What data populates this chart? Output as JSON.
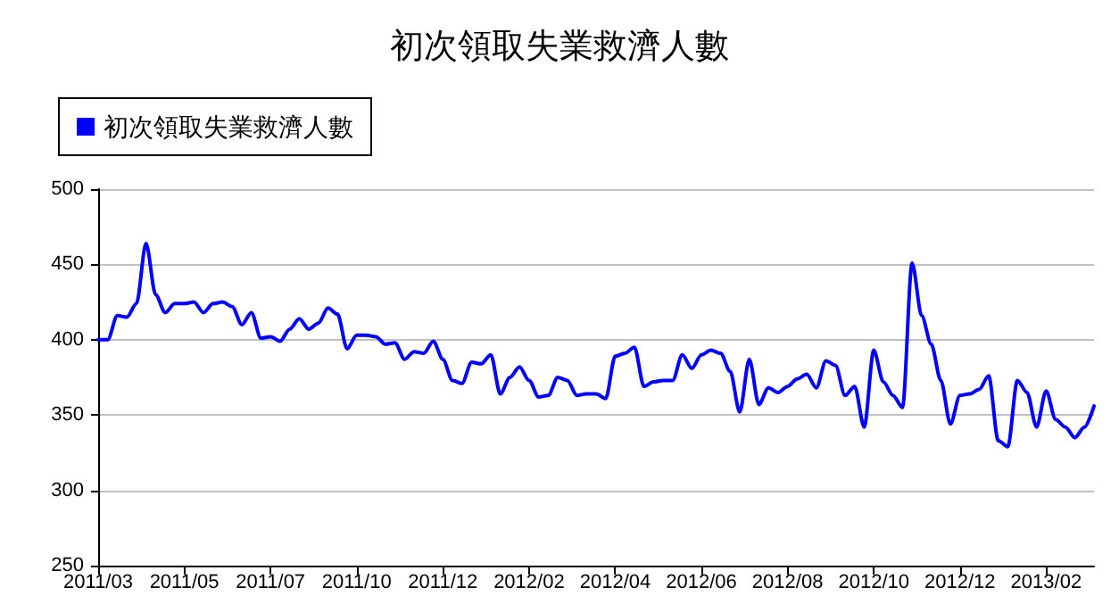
{
  "chart_data": {
    "type": "line",
    "title": "初次領取失業救濟人數",
    "categories": [
      "2011/03",
      null,
      null,
      null,
      null,
      null,
      null,
      null,
      null,
      "2011/05",
      null,
      null,
      null,
      null,
      null,
      null,
      null,
      null,
      "2011/07",
      null,
      null,
      null,
      null,
      null,
      null,
      null,
      null,
      "2011/10",
      null,
      null,
      null,
      null,
      null,
      null,
      null,
      null,
      "2011/12",
      null,
      null,
      null,
      null,
      null,
      null,
      null,
      null,
      "2012/02",
      null,
      null,
      null,
      null,
      null,
      null,
      null,
      null,
      "2012/04",
      null,
      null,
      null,
      null,
      null,
      null,
      null,
      null,
      "2012/06",
      null,
      null,
      null,
      null,
      null,
      null,
      null,
      null,
      "2012/08",
      null,
      null,
      null,
      null,
      null,
      null,
      null,
      null,
      "2012/10",
      null,
      null,
      null,
      null,
      null,
      null,
      null,
      null,
      "2012/12",
      null,
      null,
      null,
      null,
      null,
      null,
      null,
      null,
      "2013/02",
      null,
      null,
      null,
      null,
      null
    ],
    "series": [
      {
        "name": "初次領取失業救濟人數",
        "color": "#0000ff",
        "values": [
          400,
          400,
          416,
          415,
          424,
          464,
          430,
          418,
          424,
          424,
          425,
          418,
          424,
          425,
          422,
          410,
          418,
          401,
          402,
          399,
          407,
          414,
          407,
          411,
          421,
          417,
          394,
          403,
          403,
          402,
          397,
          398,
          387,
          392,
          391,
          399,
          387,
          373,
          371,
          385,
          384,
          390,
          364,
          375,
          382,
          373,
          362,
          363,
          375,
          373,
          363,
          364,
          364,
          361,
          389,
          391,
          395,
          369,
          372,
          373,
          373,
          390,
          381,
          390,
          393,
          391,
          379,
          352,
          387,
          357,
          368,
          365,
          369,
          374,
          377,
          368,
          386,
          383,
          363,
          369,
          342,
          393,
          372,
          363,
          355,
          451,
          416,
          397,
          373,
          344,
          363,
          364,
          367,
          376,
          333,
          329,
          373,
          365,
          342,
          366,
          347,
          342,
          335,
          342,
          356
        ]
      }
    ],
    "ylim": [
      250,
      500
    ],
    "yticks": [
      250,
      300,
      350,
      400,
      450,
      500
    ],
    "grid": "y",
    "legend": "top left",
    "marker": "none",
    "line_style": "solid"
  }
}
